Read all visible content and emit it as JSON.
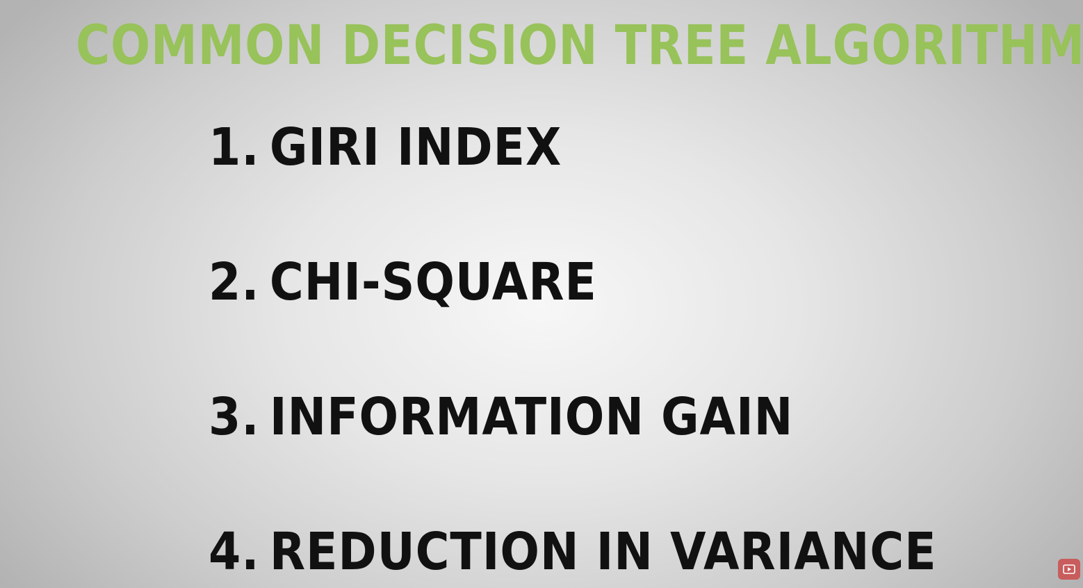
{
  "slide": {
    "title": "COMMON DECISION TREE ALGORITHMS",
    "items": [
      {
        "number": "1.",
        "label": "GIRI INDEX"
      },
      {
        "number": "2.",
        "label": "CHI-SQUARE"
      },
      {
        "number": "3.",
        "label": "INFORMATION GAIN"
      },
      {
        "number": "4.",
        "label": "REDUCTION IN VARIANCE"
      }
    ]
  },
  "overlay": {
    "icon": "youtube-play-icon"
  },
  "colors": {
    "title": "#98c25a",
    "items": "#111111",
    "background_center": "#f7f7f7",
    "background_edge": "#b3b3b3",
    "youtube_button": "#c95c5c"
  }
}
